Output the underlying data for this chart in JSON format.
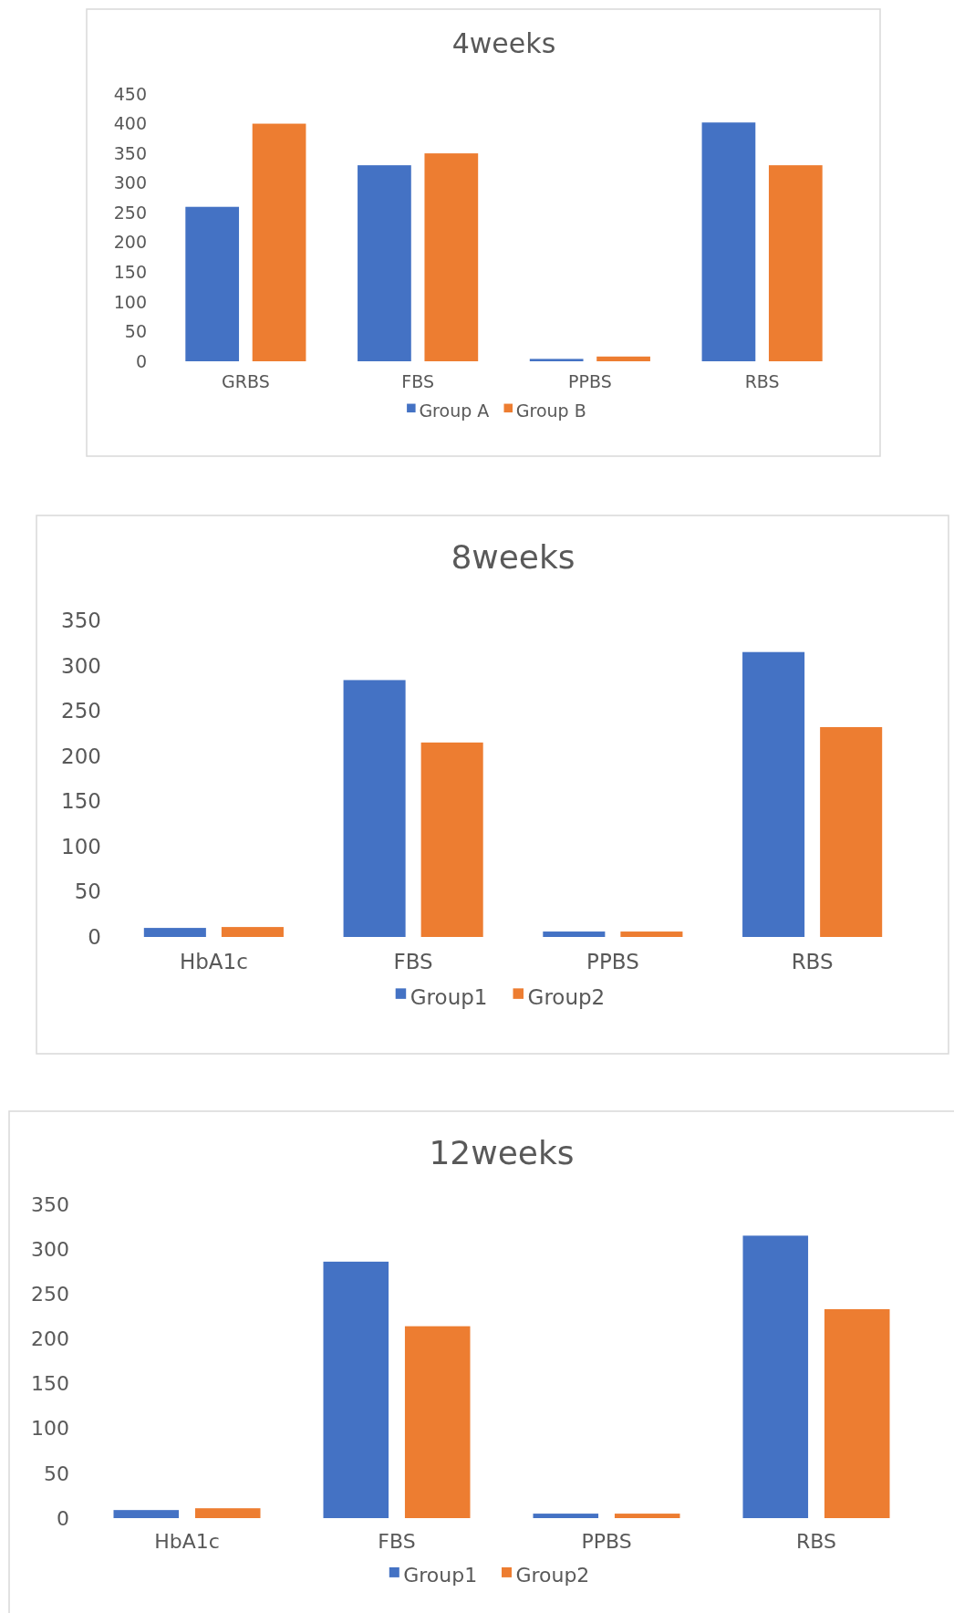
{
  "chart_data": [
    {
      "type": "bar",
      "title": "4weeks",
      "categories": [
        "GRBS",
        "FBS",
        "PPBS",
        "RBS"
      ],
      "series": [
        {
          "name": "Group A",
          "color": "#4472c4",
          "values": [
            260,
            330,
            4,
            402
          ]
        },
        {
          "name": "Group B",
          "color": "#ed7d31",
          "values": [
            400,
            350,
            8,
            330
          ]
        }
      ],
      "ylim": [
        0,
        450
      ],
      "yticks": [
        0,
        50,
        100,
        150,
        200,
        250,
        300,
        350,
        400,
        450
      ],
      "grid": false,
      "legend": "bottom"
    },
    {
      "type": "bar",
      "title": "8weeks",
      "categories": [
        "HbA1c",
        "FBS",
        "PPBS",
        "RBS"
      ],
      "series": [
        {
          "name": "Group1",
          "color": "#4472c4",
          "values": [
            10,
            284,
            6,
            315
          ]
        },
        {
          "name": "Group2",
          "color": "#ed7d31",
          "values": [
            11,
            215,
            6,
            232
          ]
        }
      ],
      "ylim": [
        0,
        350
      ],
      "yticks": [
        0,
        50,
        100,
        150,
        200,
        250,
        300,
        350
      ],
      "grid": false,
      "legend": "bottom"
    },
    {
      "type": "bar",
      "title": "12weeks",
      "categories": [
        "HbA1c",
        "FBS",
        "PPBS",
        "RBS"
      ],
      "series": [
        {
          "name": "Group1",
          "color": "#4472c4",
          "values": [
            9,
            286,
            5,
            315
          ]
        },
        {
          "name": "Group2",
          "color": "#ed7d31",
          "values": [
            11,
            214,
            5,
            233
          ]
        }
      ],
      "ylim": [
        0,
        350
      ],
      "yticks": [
        0,
        50,
        100,
        150,
        200,
        250,
        300,
        350
      ],
      "grid": false,
      "legend": "bottom"
    }
  ]
}
